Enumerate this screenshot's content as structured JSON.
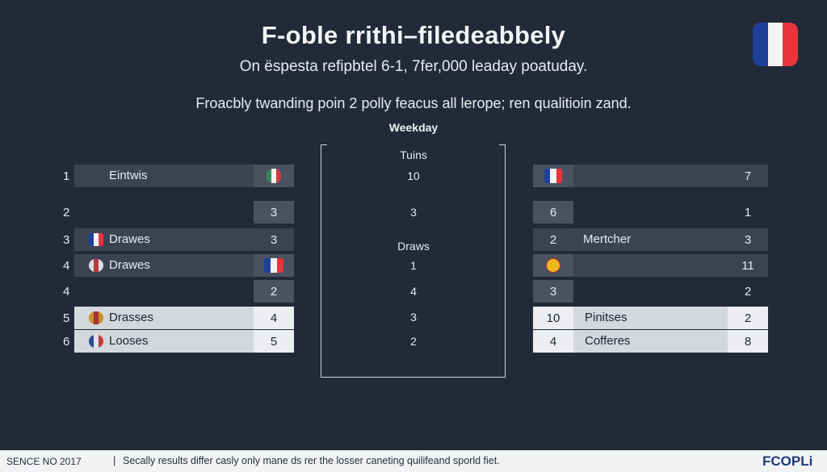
{
  "header": {
    "title": "F-oble rrithi–filedeabbely",
    "subtitle": "On ëspesta refipbtel 6-1, 7fer,000 leaday poatuday.",
    "description": "Froacbly twanding poin 2 polly feacus all lerope; ren qualitioin zand.",
    "weekday": "Weekday"
  },
  "colors": {
    "background": "#222938",
    "flag_blue": "#1f3f9a",
    "flag_white": "#f4f4f4",
    "flag_red": "#e8343c"
  },
  "left_table": [
    {
      "rank": "1",
      "name": "Eintwis",
      "value": ""
    },
    {
      "rank": "2",
      "name": "",
      "value": "3"
    },
    {
      "rank": "3",
      "name": "Drawes",
      "value": "3"
    },
    {
      "rank": "4",
      "name": "Drawes",
      "value": ""
    },
    {
      "rank": "4",
      "name": "",
      "value": "2"
    },
    {
      "rank": "5",
      "name": "Drasses",
      "value": "4"
    },
    {
      "rank": "6",
      "name": "Looses",
      "value": "5"
    }
  ],
  "center": {
    "header": "Tuins",
    "draws_label": "Draws",
    "values": [
      "10",
      "3",
      "1",
      "4",
      "3",
      "2"
    ]
  },
  "right_table": [
    {
      "rank": "",
      "name": "",
      "value": "7"
    },
    {
      "rank": "6",
      "name": "",
      "value": "1"
    },
    {
      "rank": "2",
      "name": "Mertcher",
      "value": "3"
    },
    {
      "rank": "",
      "name": "",
      "value": "11"
    },
    {
      "rank": "3",
      "name": "",
      "value": "2"
    },
    {
      "rank": "10",
      "name": "Pinitses",
      "value": "2"
    },
    {
      "rank": "4",
      "name": "Cofferes",
      "value": "8"
    }
  ],
  "footer": {
    "left": "SENCE NO 2017",
    "separator": "|",
    "text": "Secally results differ casly only mane ds rer the losser caneting quilifeand sporld fiet.",
    "logo": "FCOPLi"
  }
}
